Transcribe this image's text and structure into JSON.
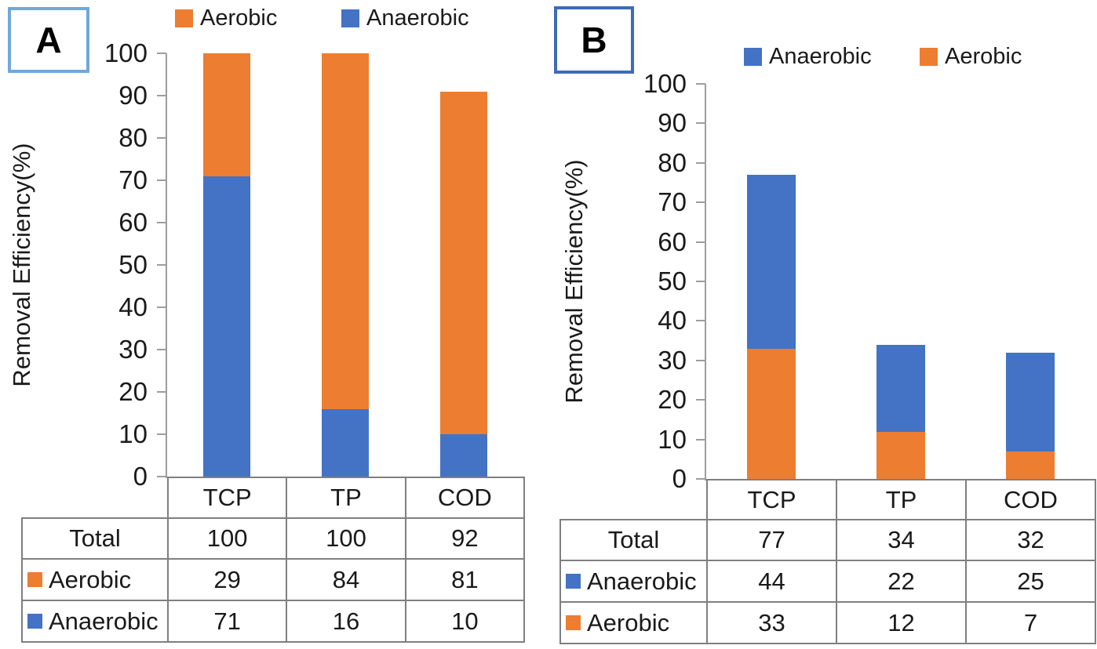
{
  "colors": {
    "aerobic": "#ED7D31",
    "anaerobic": "#4472C4",
    "axis": "#9d9d9d",
    "table_border": "#7f7f7f",
    "panel_a_border": "#6fa8dc",
    "panel_b_border": "#3f6bb8"
  },
  "chart_data": [
    {
      "type": "bar",
      "stacked": true,
      "panel_label": "A",
      "categories": [
        "TCP",
        "TP",
        "COD"
      ],
      "series": [
        {
          "name": "Anaerobic",
          "color_key": "anaerobic",
          "values": [
            71,
            16,
            10
          ]
        },
        {
          "name": "Aerobic",
          "color_key": "aerobic",
          "values": [
            29,
            84,
            81
          ]
        }
      ],
      "legend": [
        {
          "name": "Aerobic",
          "color_key": "aerobic"
        },
        {
          "name": "Anaerobic",
          "color_key": "anaerobic"
        }
      ],
      "legend_position": "top",
      "ylabel": "Removal Efficiency(%)",
      "ylim": [
        0,
        100
      ],
      "ytick_step": 10,
      "grid": false,
      "table_rows": [
        {
          "label": "Total",
          "swatch": null,
          "values": [
            "100",
            "100",
            "92"
          ]
        },
        {
          "label": "Aerobic",
          "swatch": "aerobic",
          "values": [
            "29",
            "84",
            "81"
          ]
        },
        {
          "label": "Anaerobic",
          "swatch": "anaerobic",
          "values": [
            "71",
            "16",
            "10"
          ]
        }
      ]
    },
    {
      "type": "bar",
      "stacked": true,
      "panel_label": "B",
      "categories": [
        "TCP",
        "TP",
        "COD"
      ],
      "series": [
        {
          "name": "Aerobic",
          "color_key": "aerobic",
          "values": [
            33,
            12,
            7
          ]
        },
        {
          "name": "Anaerobic",
          "color_key": "anaerobic",
          "values": [
            44,
            22,
            25
          ]
        }
      ],
      "legend": [
        {
          "name": "Anaerobic",
          "color_key": "anaerobic"
        },
        {
          "name": "Aerobic",
          "color_key": "aerobic"
        }
      ],
      "legend_position": "top",
      "ylabel": "Removal Efficiency(%)",
      "ylim": [
        0,
        100
      ],
      "ytick_step": 10,
      "grid": false,
      "table_rows": [
        {
          "label": "Total",
          "swatch": null,
          "values": [
            "77",
            "34",
            "32"
          ]
        },
        {
          "label": "Anaerobic",
          "swatch": "anaerobic",
          "values": [
            "44",
            "22",
            "25"
          ]
        },
        {
          "label": "Aerobic",
          "swatch": "aerobic",
          "values": [
            "33",
            "12",
            "7"
          ]
        }
      ]
    }
  ]
}
